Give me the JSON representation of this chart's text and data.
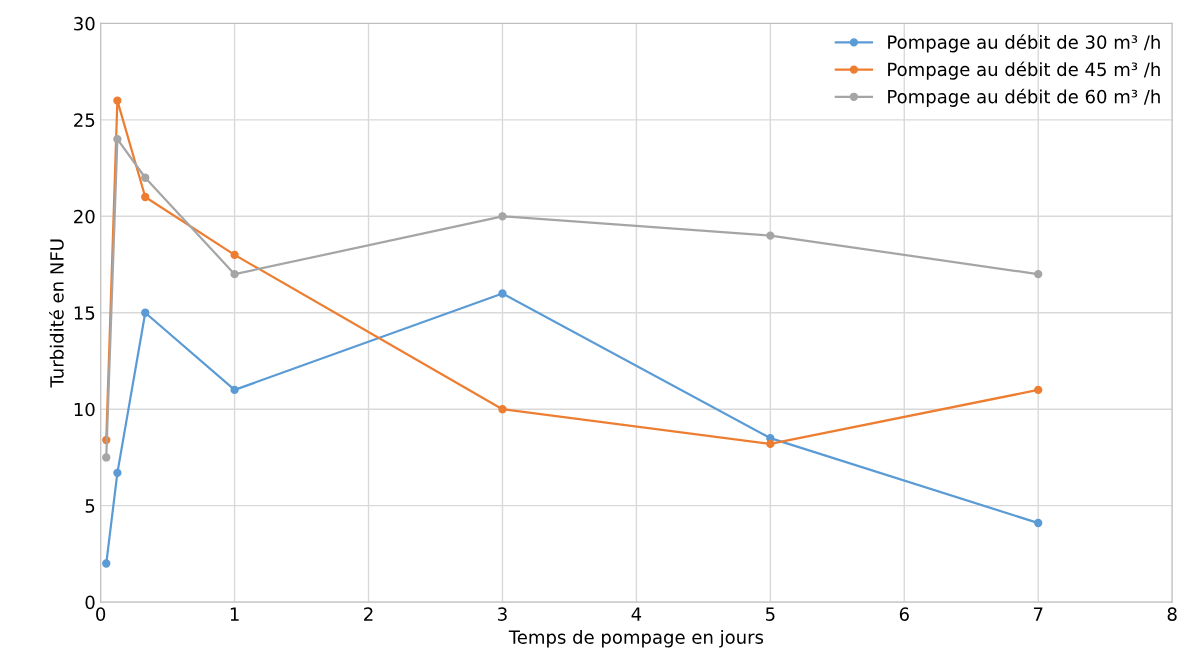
{
  "chart_data": {
    "type": "line",
    "xlabel": "Temps de pompage en jours",
    "ylabel": "Turbidité en NFU",
    "xlim": [
      0,
      8
    ],
    "xticks": [
      0,
      1,
      2,
      3,
      4,
      5,
      6,
      7,
      8
    ],
    "ylim": [
      0,
      30
    ],
    "yticks": [
      0,
      5,
      10,
      15,
      20,
      25,
      30
    ],
    "grid": true,
    "legend": "top right",
    "marker": "circle",
    "line_style": "solid",
    "x": [
      0.042,
      0.125,
      0.333,
      1,
      3,
      5,
      7
    ],
    "series": [
      {
        "name": "Pompage au débit de 30 m³ /h",
        "color": "#5b9bd5",
        "values": [
          2.0,
          6.7,
          15,
          11,
          16,
          8.5,
          4.1
        ]
      },
      {
        "name": "Pompage au débit de 45 m³ /h",
        "color": "#ed7d31",
        "values": [
          8.4,
          26,
          21,
          18,
          10,
          8.2,
          11
        ]
      },
      {
        "name": "Pompage au débit de 60 m³ /h",
        "color": "#a5a5a5",
        "values": [
          7.5,
          24,
          22,
          17,
          20,
          19,
          17
        ]
      }
    ]
  }
}
